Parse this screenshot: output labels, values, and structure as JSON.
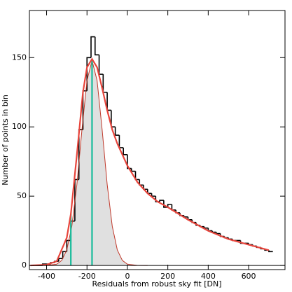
{
  "chart_data": {
    "type": "histogram",
    "xlabel": "Residuals from robust sky fit [DN]",
    "ylabel": "Number of points in bin",
    "xlim": [
      -485,
      780
    ],
    "ylim": [
      -3,
      184
    ],
    "xticks": [
      -400,
      -200,
      0,
      200,
      400,
      600
    ],
    "yticks": [
      0,
      50,
      100,
      150
    ],
    "color": "#000000",
    "bins": [
      -480,
      -460,
      -440,
      -420,
      -400,
      -380,
      -360,
      -340,
      -320,
      -300,
      -280,
      -260,
      -240,
      -220,
      -200,
      -180,
      -160,
      -140,
      -120,
      -100,
      -80,
      -60,
      -40,
      -20,
      0,
      20,
      40,
      60,
      80,
      100,
      120,
      140,
      160,
      180,
      200,
      220,
      240,
      260,
      280,
      300,
      320,
      340,
      360,
      380,
      400,
      420,
      440,
      460,
      480,
      500,
      520,
      540,
      560,
      580,
      600,
      620,
      640,
      660,
      680,
      700,
      720
    ],
    "values": [
      0,
      0,
      0,
      1,
      1,
      2,
      3,
      5,
      10,
      18,
      32,
      62,
      98,
      126,
      150,
      165,
      152,
      138,
      125,
      112,
      100,
      94,
      85,
      80,
      70,
      68,
      62,
      58,
      55,
      52,
      50,
      46,
      47,
      42,
      44,
      40,
      38,
      36,
      35,
      33,
      31,
      29,
      28,
      27,
      25,
      24,
      23,
      21,
      20,
      19,
      18,
      18,
      16,
      16,
      15,
      14,
      13,
      12,
      11,
      10
    ],
    "gaussian": {
      "color": "#c0392b",
      "fill": "#e0e0e0",
      "x": [
        -400,
        -350,
        -325,
        -300,
        -275,
        -250,
        -225,
        -200,
        -175,
        -150,
        -125,
        -100,
        -75,
        -50,
        -25,
        0,
        50,
        100
      ],
      "y": [
        0.03,
        0.9,
        3.6,
        11.2,
        28.3,
        58.4,
        97.9,
        133.4,
        148,
        133.4,
        97.9,
        58.4,
        28.3,
        11.2,
        3.6,
        0.9,
        0.03,
        0
      ]
    },
    "fit": {
      "color": "#e8453c",
      "x": [
        -480,
        -400,
        -350,
        -300,
        -280,
        -250,
        -220,
        -200,
        -175,
        -150,
        -125,
        -100,
        -75,
        -50,
        0,
        50,
        100,
        150,
        200,
        300,
        400,
        500,
        600,
        700
      ],
      "y": [
        0,
        0.5,
        3,
        20,
        37,
        80,
        125,
        143,
        149,
        143,
        128,
        112,
        98,
        88,
        72,
        60,
        52,
        46,
        42,
        33,
        25,
        19,
        15,
        11
      ]
    },
    "vlines": {
      "color": "#1abc9c",
      "x": [
        -280,
        -175
      ]
    }
  }
}
